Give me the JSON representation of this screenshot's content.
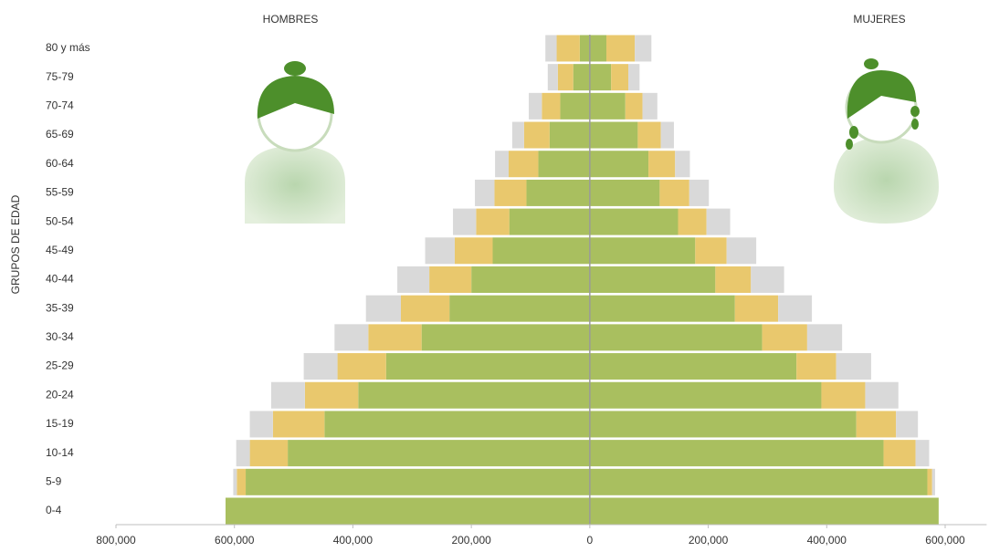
{
  "chart_data": {
    "type": "pyramid",
    "annotations": [
      "HOMBRES",
      "MUJERES"
    ],
    "y_label": "GRUPOS DE EDAD",
    "categories": [
      "0-4",
      "5-9",
      "10-14",
      "15-19",
      "20-24",
      "25-29",
      "30-34",
      "35-39",
      "40-44",
      "45-49",
      "50-54",
      "55-59",
      "60-64",
      "65-69",
      "70-74",
      "75-79",
      "80 y más"
    ],
    "series": [
      {
        "color": "#a9bf5f",
        "values": [
          -615000,
          -581000,
          -510000,
          -448000,
          -391000,
          -344000,
          -284000,
          -237000,
          -200000,
          -164000,
          -136000,
          -107000,
          -87000,
          -68000,
          -50000,
          -28000,
          -17000
        ]
      },
      {
        "color": "#e9c86d",
        "values": [
          0,
          -15000,
          -64000,
          -87000,
          -90000,
          -82000,
          -90000,
          -82000,
          -71000,
          -64000,
          -56000,
          -54000,
          -50000,
          -43000,
          -31000,
          -26000,
          -39000
        ]
      },
      {
        "color": "#d9d9d9",
        "values": [
          0,
          -6000,
          -23000,
          -39000,
          -57000,
          -57000,
          -57000,
          -59000,
          -54000,
          -50000,
          -39000,
          -33000,
          -23000,
          -20000,
          -22000,
          -17000,
          -19000
        ]
      },
      {
        "color": "#a9bf5f",
        "values": [
          589000,
          570000,
          496000,
          450000,
          391000,
          349000,
          291000,
          245000,
          212000,
          178000,
          149000,
          118000,
          99000,
          81000,
          60000,
          36000,
          28000
        ]
      },
      {
        "color": "#e9c86d",
        "values": [
          0,
          8000,
          54000,
          67000,
          74000,
          67000,
          76000,
          73000,
          60000,
          53000,
          48000,
          50000,
          45000,
          39000,
          29000,
          29000,
          48000
        ]
      },
      {
        "color": "#d9d9d9",
        "values": [
          0,
          5000,
          23000,
          37000,
          56000,
          59000,
          59000,
          57000,
          56000,
          50000,
          40000,
          33000,
          25000,
          22000,
          25000,
          19000,
          28000
        ]
      }
    ],
    "xlim": [
      -800000,
      670000
    ],
    "xticks": [
      {
        "value": -800000,
        "label": "800,000"
      },
      {
        "value": -600000,
        "label": "600,000"
      },
      {
        "value": -400000,
        "label": "400,000"
      },
      {
        "value": -200000,
        "label": "200,000"
      },
      0,
      {
        "value": 200000,
        "label": "200,000"
      },
      {
        "value": 400000,
        "label": "400,000"
      },
      {
        "value": 600000,
        "label": "600,000"
      }
    ]
  }
}
